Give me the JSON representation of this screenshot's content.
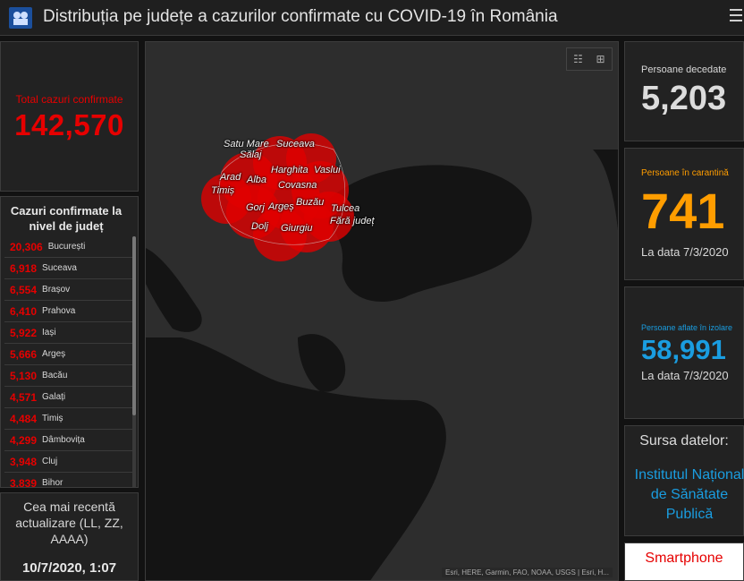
{
  "header": {
    "title": "Distribuția pe județe a cazurilor confirmate cu COVID-19 în România",
    "logo_icon": "ministry-logo-icon",
    "menu_icon": "hamburger-menu-icon"
  },
  "total": {
    "label": "Total cazuri confirmate",
    "value": "142,570",
    "color": "#e60000"
  },
  "counties": {
    "heading": "Cazuri confirmate la nivel de județ",
    "rows": [
      {
        "count": "20,306",
        "name": "București"
      },
      {
        "count": "6,918",
        "name": "Suceava"
      },
      {
        "count": "6,554",
        "name": "Brașov"
      },
      {
        "count": "6,410",
        "name": "Prahova"
      },
      {
        "count": "5,922",
        "name": "Iași"
      },
      {
        "count": "5,666",
        "name": "Argeș"
      },
      {
        "count": "5,130",
        "name": "Bacău"
      },
      {
        "count": "4,571",
        "name": "Galați"
      },
      {
        "count": "4,484",
        "name": "Timiș"
      },
      {
        "count": "4,299",
        "name": "Dâmbovița"
      },
      {
        "count": "3,948",
        "name": "Cluj"
      },
      {
        "count": "3,839",
        "name": "Bihor"
      }
    ]
  },
  "update": {
    "label": "Cea mai recentă actualizare (LL, ZZ, AAAA)",
    "value": "10/7/2020, 1:07"
  },
  "map": {
    "list_icon": "legend-list-icon",
    "grid_icon": "basemap-grid-icon",
    "attribution": "Esri, HERE, Garmin, FAO, NOAA, USGS | Esri, H...",
    "labels": {
      "satu_mare": "Satu Mare",
      "suceava": "Suceava",
      "salaj": "Sălaj",
      "harghita": "Harghita",
      "vaslui": "Vaslui",
      "arad": "Arad",
      "alba": "Alba",
      "covasna": "Covasna",
      "timis": "Timiș",
      "buzau": "Buzău",
      "gorj": "Gorj",
      "arges": "Argeș",
      "tulcea": "Tulcea",
      "fara_judet": "Fără județ",
      "dolj": "Dolj",
      "giurgiu": "Giurgiu"
    }
  },
  "deaths": {
    "label": "Persoane decedate",
    "value": "5,203"
  },
  "quarantine": {
    "label": "Persoane în carantină",
    "value": "741",
    "date": "La data 7/3/2020",
    "color": "#ff9d00"
  },
  "isolation": {
    "label": "Persoane aflate în izolare",
    "value": "58,991",
    "date": "La data 7/3/2020",
    "color": "#1a9de0"
  },
  "source": {
    "label": "Sursa datelor:",
    "link": "Institutul Național de Sănătate Publică"
  },
  "smartphone": {
    "label": "Smartphone"
  }
}
